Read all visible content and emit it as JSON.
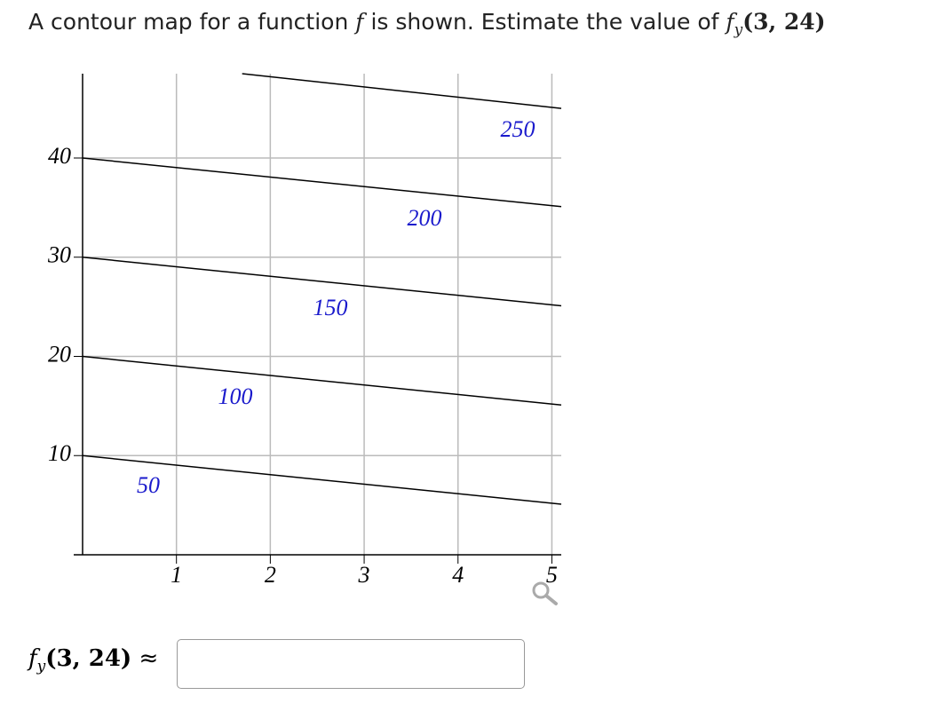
{
  "question": {
    "text_before": "A contour map for a function",
    "function": "f",
    "text_after": "is shown. Estimate the value of",
    "expression": {
      "function": "f",
      "subscript": "y",
      "arguments": "(3, 24)"
    }
  },
  "contour_map": {
    "xlim": [
      0,
      5.1
    ],
    "ylim": [
      0,
      48.5
    ],
    "xticks": [
      1,
      2,
      3,
      4,
      5
    ],
    "yticks": [
      10,
      20,
      30,
      40
    ],
    "lines": [
      {
        "level": 50,
        "from": [
          0,
          10
        ],
        "to": [
          5.1,
          5.1
        ]
      },
      {
        "level": 100,
        "from": [
          0,
          20
        ],
        "to": [
          5.1,
          15.1
        ]
      },
      {
        "level": 150,
        "from": [
          0,
          30
        ],
        "to": [
          5.1,
          25.1
        ]
      },
      {
        "level": 200,
        "from": [
          0,
          40
        ],
        "to": [
          5.1,
          35.1
        ]
      },
      {
        "level": 250,
        "from": [
          1.7,
          48.5
        ],
        "to": [
          5.1,
          45
        ]
      }
    ]
  },
  "answer": {
    "function": "f",
    "subscript": "y",
    "arguments": "(3, 24)",
    "relation": "≈"
  }
}
